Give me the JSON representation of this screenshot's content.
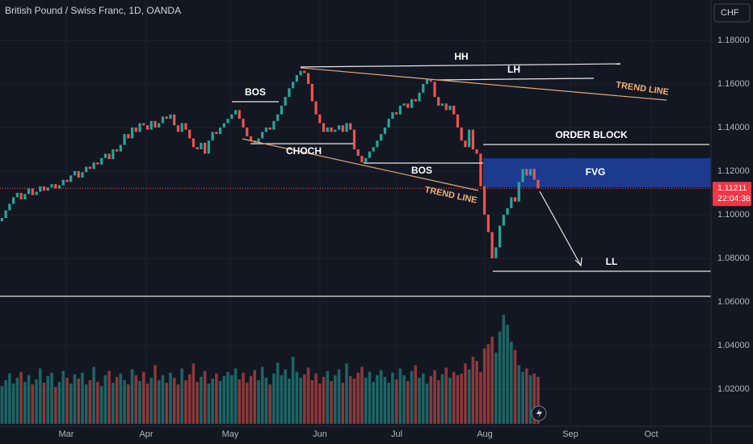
{
  "chart_data": {
    "type": "candlestick",
    "title": "British Pound / Swiss Franc, 1D, OANDA",
    "currency": "CHF",
    "up_color": "#26a69a",
    "down_color": "#ef5350",
    "ylim": [
      1.0022,
      1.1985
    ],
    "yticks": [
      {
        "value": 1.18,
        "label": "1.18000"
      },
      {
        "value": 1.16,
        "label": "1.16000"
      },
      {
        "value": 1.14,
        "label": "1.14000"
      },
      {
        "value": 1.12,
        "label": "1.12000"
      },
      {
        "value": 1.1,
        "label": "1.10000"
      },
      {
        "value": 1.08,
        "label": "1.08000"
      },
      {
        "value": 1.06,
        "label": "1.06000"
      },
      {
        "value": 1.04,
        "label": "1.04000"
      },
      {
        "value": 1.02,
        "label": "1.02000"
      }
    ],
    "xticks": [
      "Mar",
      "Apr",
      "May",
      "Jun",
      "Jul",
      "Aug",
      "Sep",
      "Oct"
    ],
    "last_price": 1.11211,
    "countdown": "22:04:38",
    "annotations": [
      "HH",
      "LH",
      "TREND LINE",
      "BOS",
      "CHOCH",
      "BOS",
      "TREND LINE",
      "ORDER BLOCK",
      "FVG",
      "LL"
    ],
    "open": [
      1.097,
      1.0985,
      1.102,
      1.105,
      1.108,
      1.11,
      1.107,
      1.1095,
      1.112,
      1.109,
      1.1105,
      1.113,
      1.111,
      1.1125,
      1.114,
      1.112,
      1.1135,
      1.116,
      1.115,
      1.118,
      1.12,
      1.117,
      1.1195,
      1.122,
      1.121,
      1.124,
      1.123,
      1.126,
      1.128,
      1.1255,
      1.13,
      1.129,
      1.132,
      1.137,
      1.135,
      1.14,
      1.138,
      1.142,
      1.141,
      1.139,
      1.143,
      1.14,
      1.142,
      1.145,
      1.144,
      1.146,
      1.141,
      1.138,
      1.142,
      1.139,
      1.135,
      1.131,
      1.13,
      1.133,
      1.128,
      1.134,
      1.138,
      1.137,
      1.14,
      1.142,
      1.144,
      1.146,
      1.148,
      1.144,
      1.14,
      1.136,
      1.134,
      1.133,
      1.135,
      1.138,
      1.14,
      1.139,
      1.143,
      1.146,
      1.15,
      1.154,
      1.158,
      1.161,
      1.164,
      1.166,
      1.165,
      1.16,
      1.152,
      1.146,
      1.142,
      1.138,
      1.14,
      1.138,
      1.139,
      1.141,
      1.138,
      1.142,
      1.139,
      1.13,
      1.127,
      1.124,
      1.126,
      1.129,
      1.131,
      1.134,
      1.137,
      1.14,
      1.144,
      1.147,
      1.146,
      1.15,
      1.151,
      1.149,
      1.153,
      1.152,
      1.156,
      1.16,
      1.162,
      1.161,
      1.154,
      1.15,
      1.151,
      1.148,
      1.15,
      1.146,
      1.14,
      1.134,
      1.131,
      1.139,
      1.13,
      1.128,
      1.113,
      1.1,
      1.092,
      1.08,
      1.085,
      1.095,
      1.1,
      1.103,
      1.108,
      1.106,
      1.115,
      1.121,
      1.118,
      1.121,
      1.116
    ],
    "close": [
      1.0985,
      1.102,
      1.105,
      1.108,
      1.11,
      1.107,
      1.1095,
      1.112,
      1.109,
      1.1105,
      1.113,
      1.111,
      1.1125,
      1.114,
      1.112,
      1.1135,
      1.116,
      1.115,
      1.118,
      1.12,
      1.117,
      1.1195,
      1.122,
      1.121,
      1.124,
      1.123,
      1.126,
      1.128,
      1.1255,
      1.13,
      1.129,
      1.132,
      1.137,
      1.135,
      1.14,
      1.138,
      1.142,
      1.141,
      1.139,
      1.143,
      1.14,
      1.142,
      1.145,
      1.144,
      1.146,
      1.141,
      1.138,
      1.142,
      1.139,
      1.135,
      1.131,
      1.13,
      1.133,
      1.128,
      1.134,
      1.138,
      1.137,
      1.14,
      1.142,
      1.144,
      1.146,
      1.148,
      1.144,
      1.14,
      1.136,
      1.134,
      1.133,
      1.135,
      1.138,
      1.14,
      1.139,
      1.143,
      1.146,
      1.15,
      1.154,
      1.158,
      1.161,
      1.164,
      1.166,
      1.165,
      1.16,
      1.152,
      1.146,
      1.142,
      1.138,
      1.14,
      1.138,
      1.139,
      1.141,
      1.138,
      1.142,
      1.139,
      1.13,
      1.127,
      1.124,
      1.126,
      1.129,
      1.131,
      1.134,
      1.137,
      1.14,
      1.144,
      1.147,
      1.146,
      1.15,
      1.151,
      1.149,
      1.153,
      1.152,
      1.156,
      1.16,
      1.162,
      1.161,
      1.154,
      1.15,
      1.151,
      1.148,
      1.15,
      1.146,
      1.14,
      1.134,
      1.131,
      1.139,
      1.13,
      1.128,
      1.113,
      1.1,
      1.092,
      1.08,
      1.085,
      1.095,
      1.1,
      1.103,
      1.108,
      1.106,
      1.115,
      1.121,
      1.118,
      1.121,
      1.116,
      1.11211
    ],
    "volume": [
      45,
      52,
      60,
      48,
      55,
      62,
      50,
      58,
      47,
      53,
      66,
      49,
      57,
      61,
      44,
      50,
      63,
      55,
      48,
      59,
      54,
      61,
      47,
      52,
      68,
      50,
      45,
      58,
      63,
      49,
      56,
      60,
      52,
      47,
      65,
      58,
      51,
      62,
      48,
      55,
      70,
      52,
      58,
      49,
      61,
      55,
      47,
      66,
      52,
      59,
      72,
      50,
      56,
      63,
      48,
      54,
      60,
      51,
      57,
      62,
      58,
      66,
      53,
      61,
      49,
      57,
      64,
      52,
      68,
      55,
      47,
      60,
      73,
      58,
      65,
      54,
      80,
      62,
      55,
      59,
      67,
      52,
      60,
      48,
      56,
      63,
      51,
      58,
      65,
      49,
      72,
      57,
      54,
      61,
      68,
      55,
      62,
      50,
      58,
      64,
      56,
      49,
      61,
      53,
      66,
      58,
      51,
      63,
      70,
      55,
      60,
      48,
      57,
      64,
      52,
      59,
      67,
      55,
      62,
      58,
      60,
      72,
      65,
      80,
      75,
      62,
      90,
      95,
      104,
      85,
      110,
      130,
      118,
      98,
      88,
      70,
      62,
      66,
      58,
      60,
      56
    ]
  }
}
